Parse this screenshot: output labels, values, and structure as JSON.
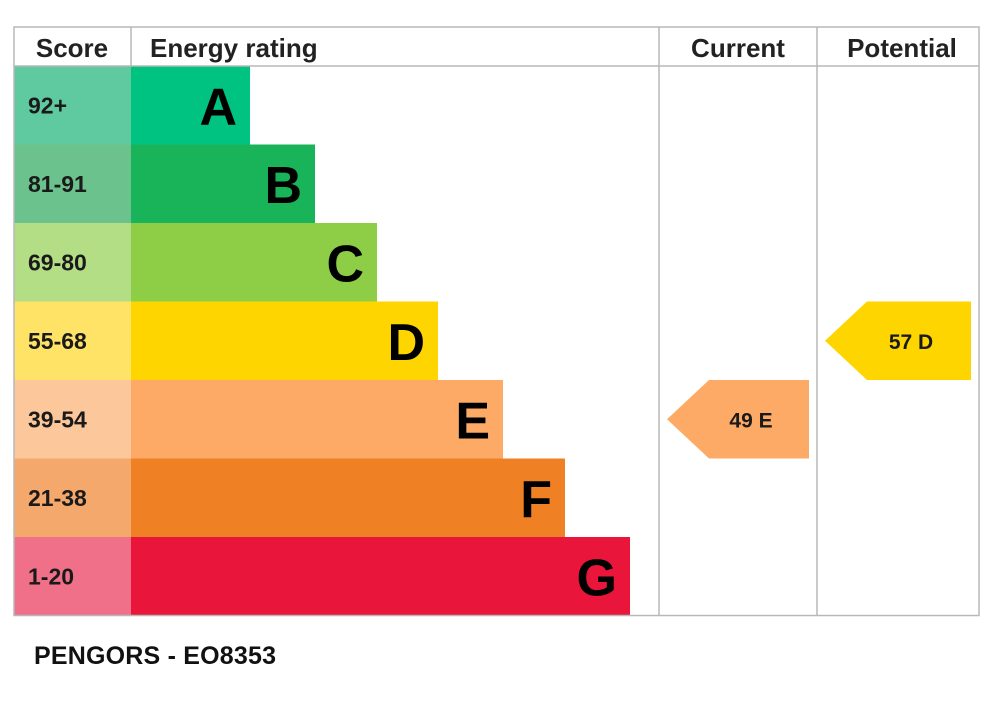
{
  "chart_data": {
    "type": "bar",
    "headers": {
      "score": "Score",
      "rating": "Energy rating",
      "current": "Current",
      "potential": "Potential"
    },
    "bands": [
      {
        "letter": "A",
        "range": "92+",
        "color": "#00c281",
        "score_bg": "#5fc9a0"
      },
      {
        "letter": "B",
        "range": "81-91",
        "color": "#19b459",
        "score_bg": "#6cc28c"
      },
      {
        "letter": "C",
        "range": "69-80",
        "color": "#8dce46",
        "score_bg": "#b4de86"
      },
      {
        "letter": "D",
        "range": "55-68",
        "color": "#ffd500",
        "score_bg": "#ffe366"
      },
      {
        "letter": "E",
        "range": "39-54",
        "color": "#fcaa65",
        "score_bg": "#fcc79a"
      },
      {
        "letter": "F",
        "range": "21-38",
        "color": "#ef8023",
        "score_bg": "#f4a86c"
      },
      {
        "letter": "G",
        "range": "1-20",
        "color": "#e9153b",
        "score_bg": "#ef7088"
      }
    ],
    "current": {
      "value": 49,
      "band": "E",
      "label": "49  E",
      "color": "#fcaa65"
    },
    "potential": {
      "value": 57,
      "band": "D",
      "label": "57  D",
      "color": "#ffd500"
    }
  },
  "caption": "PENGORS - EO8353"
}
